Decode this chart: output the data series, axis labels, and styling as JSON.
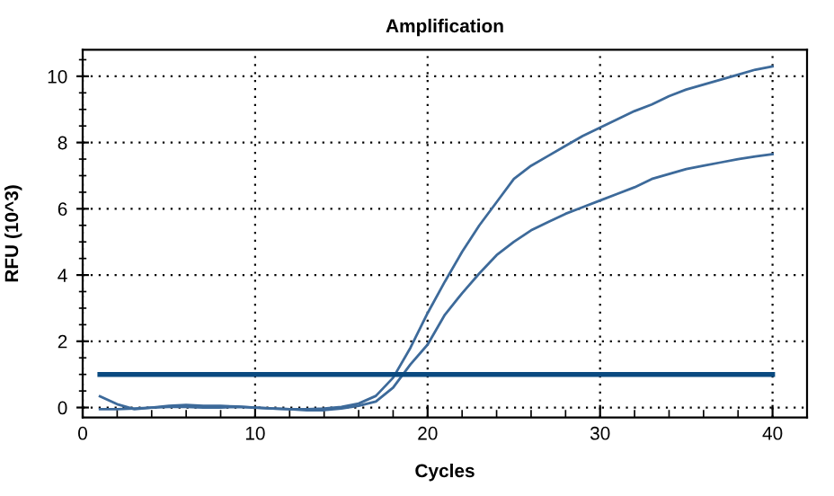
{
  "chart_data": {
    "type": "line",
    "title": "Amplification",
    "xlabel": "Cycles",
    "ylabel": "RFU (10^3)",
    "x": [
      1,
      2,
      3,
      4,
      5,
      6,
      7,
      8,
      9,
      10,
      11,
      12,
      13,
      14,
      15,
      16,
      17,
      18,
      19,
      20,
      21,
      22,
      23,
      24,
      25,
      26,
      27,
      28,
      29,
      30,
      31,
      32,
      33,
      34,
      35,
      36,
      37,
      38,
      39,
      40
    ],
    "series": [
      {
        "color": "#3d6a9a",
        "values": [
          0.34,
          0.1,
          -0.05,
          0,
          0.05,
          0.08,
          0.05,
          0.05,
          0.03,
          0,
          -0.03,
          -0.05,
          -0.05,
          -0.03,
          0.02,
          0.12,
          0.35,
          0.9,
          1.8,
          2.85,
          3.8,
          4.7,
          5.5,
          6.2,
          6.9,
          7.3,
          7.6,
          7.9,
          8.2,
          8.45,
          8.7,
          8.95,
          9.15,
          9.4,
          9.6,
          9.75,
          9.9,
          10.05,
          10.2,
          10.3
        ]
      },
      {
        "color": "#3d6a9a",
        "values": [
          -0.05,
          -0.05,
          -0.03,
          0,
          0.02,
          0.02,
          0,
          0,
          0.02,
          0,
          -0.03,
          -0.05,
          -0.08,
          -0.08,
          -0.03,
          0.05,
          0.18,
          0.6,
          1.3,
          1.9,
          2.8,
          3.45,
          4.05,
          4.6,
          5.0,
          5.35,
          5.6,
          5.85,
          6.05,
          6.25,
          6.45,
          6.65,
          6.9,
          7.05,
          7.2,
          7.3,
          7.4,
          7.5,
          7.58,
          7.65
        ]
      }
    ],
    "ref_lines": [
      {
        "axis": "y",
        "value": 1,
        "color": "#0a4a80"
      }
    ],
    "xlim": [
      0,
      42
    ],
    "ylim": [
      -0.3,
      10.8
    ],
    "xticks": [
      0,
      {
        "value": 2,
        "label": null
      },
      {
        "value": 4,
        "label": null
      },
      {
        "value": 6,
        "label": null
      },
      {
        "value": 8,
        "label": null
      },
      10,
      {
        "value": 12,
        "label": null
      },
      {
        "value": 14,
        "label": null
      },
      {
        "value": 16,
        "label": null
      },
      {
        "value": 18,
        "label": null
      },
      20,
      {
        "value": 22,
        "label": null
      },
      {
        "value": 24,
        "label": null
      },
      {
        "value": 26,
        "label": null
      },
      {
        "value": 28,
        "label": null
      },
      30,
      {
        "value": 32,
        "label": null
      },
      {
        "value": 34,
        "label": null
      },
      {
        "value": 36,
        "label": null
      },
      {
        "value": 38,
        "label": null
      },
      40
    ],
    "yticks": [
      0,
      {
        "value": 0.5,
        "label": null
      },
      {
        "value": 1,
        "label": null
      },
      {
        "value": 1.5,
        "label": null
      },
      2,
      {
        "value": 2.5,
        "label": null
      },
      {
        "value": 3,
        "label": null
      },
      {
        "value": 3.5,
        "label": null
      },
      4,
      {
        "value": 4.5,
        "label": null
      },
      {
        "value": 5,
        "label": null
      },
      {
        "value": 5.5,
        "label": null
      },
      6,
      {
        "value": 6.5,
        "label": null
      },
      {
        "value": 7,
        "label": null
      },
      {
        "value": 7.5,
        "label": null
      },
      8,
      {
        "value": 8.5,
        "label": null
      },
      {
        "value": 9,
        "label": null
      },
      {
        "value": 9.5,
        "label": null
      },
      10,
      {
        "value": 10.5,
        "label": null
      }
    ],
    "grid": true,
    "line_style": "solid",
    "marker": "none"
  }
}
